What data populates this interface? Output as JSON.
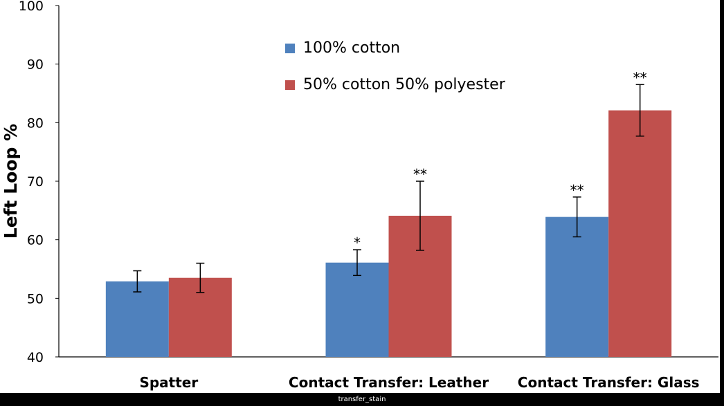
{
  "chart_data": {
    "type": "bar",
    "categories": [
      "Spatter",
      "Contact Transfer: Leather",
      "Contact Transfer: Glass"
    ],
    "series": [
      {
        "name": "100% cotton",
        "color": "#4f81bd",
        "values": [
          52.9,
          56.1,
          63.9
        ],
        "error": [
          1.8,
          2.2,
          3.4
        ],
        "significance": [
          "",
          "*",
          "**"
        ]
      },
      {
        "name": "50% cotton 50% polyester",
        "color": "#c0504d",
        "values": [
          53.5,
          64.1,
          82.1
        ],
        "error": [
          2.5,
          5.9,
          4.4
        ],
        "significance": [
          "",
          "**",
          "**"
        ]
      }
    ],
    "ylabel": "Left Loop %",
    "xlabel": "",
    "ylim": [
      40,
      100
    ],
    "yticks": [
      40,
      50,
      60,
      70,
      80,
      90,
      100
    ],
    "grid": false,
    "legend_position": "top-center"
  },
  "caption": "transfer_stain"
}
